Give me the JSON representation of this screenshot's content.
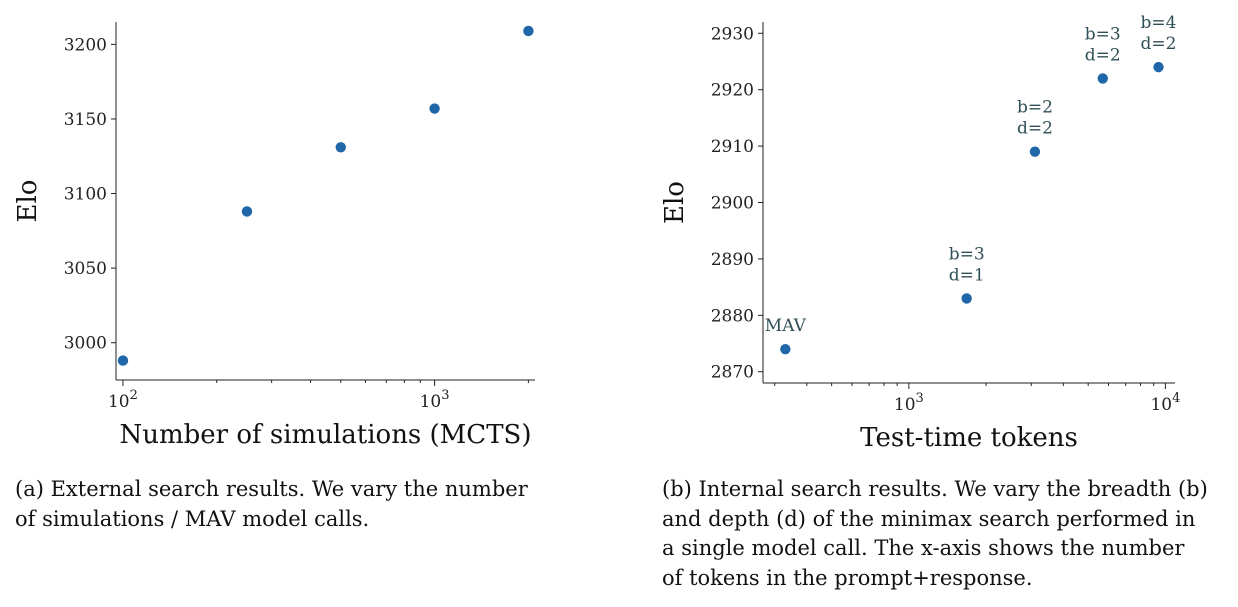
{
  "chart_data": [
    {
      "type": "scatter",
      "xscale": "log",
      "xlabel": "Number of simulations (MCTS)",
      "ylabel": "Elo",
      "xlim": [
        95,
        2100
      ],
      "ylim": [
        2975,
        3215
      ],
      "xticks": [
        {
          "value": 100,
          "label": "10^2"
        },
        {
          "value": 1000,
          "label": "10^3"
        }
      ],
      "yticks": [
        3000,
        3050,
        3100,
        3150,
        3200
      ],
      "x": [
        100,
        250,
        500,
        1000,
        2000
      ],
      "y": [
        2988,
        3088,
        3131,
        3157,
        3209
      ],
      "color": "#1f67a8",
      "grid": false
    },
    {
      "type": "scatter",
      "xscale": "log",
      "xlabel": "Test-time tokens",
      "ylabel": "Elo",
      "xlim": [
        270,
        10900
      ],
      "ylim": [
        2868,
        2932
      ],
      "xticks": [
        {
          "value": 1000,
          "label": "10^3"
        },
        {
          "value": 10000,
          "label": "10^4"
        }
      ],
      "yticks": [
        2870,
        2880,
        2890,
        2900,
        2910,
        2920,
        2930
      ],
      "x": [
        330,
        1680,
        3100,
        5700,
        9400
      ],
      "y": [
        2874,
        2883,
        2909,
        2922,
        2924
      ],
      "annotations": [
        [
          "MAV"
        ],
        [
          "b=3",
          "d=1"
        ],
        [
          "b=2",
          "d=2"
        ],
        [
          "b=3",
          "d=2"
        ],
        [
          "b=4",
          "d=2"
        ]
      ],
      "color": "#1f67a8",
      "grid": false
    }
  ],
  "captions": {
    "a": [
      "(a) External search results. We vary the number",
      "of simulations / MAV model calls."
    ],
    "b": [
      "(b) Internal search results. We vary the breadth (b)",
      "and depth (d) of the minimax search performed in",
      "a single model call. The x-axis shows the number",
      "of tokens in the prompt+response."
    ]
  }
}
